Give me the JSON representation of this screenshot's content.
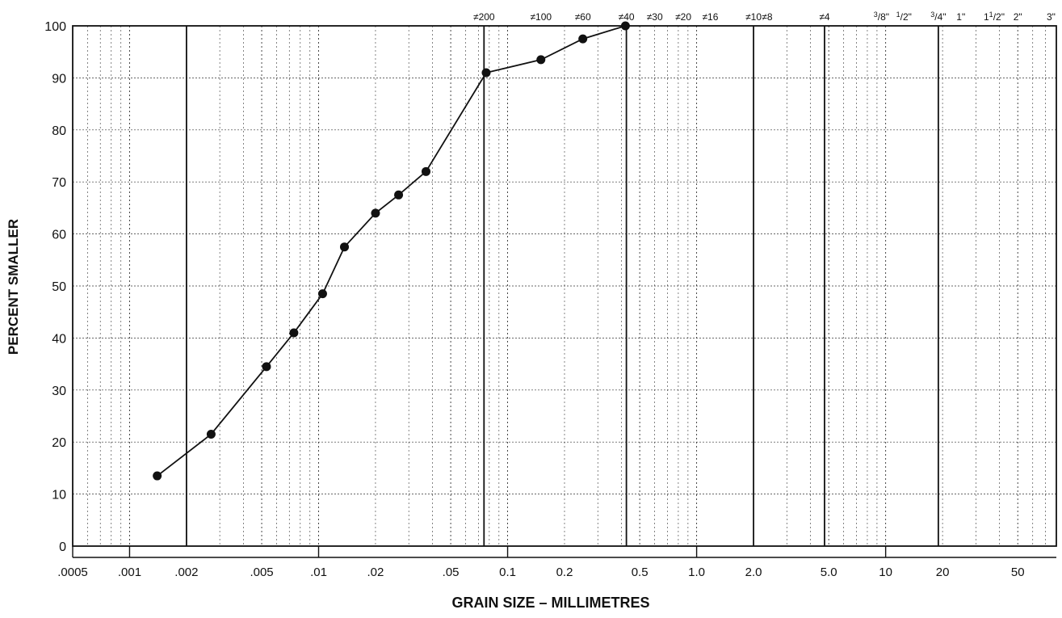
{
  "chart_data": {
    "type": "line",
    "title": "",
    "xlabel": "GRAIN SIZE – MILLIMETRES",
    "ylabel": "PERCENT SMALLER",
    "x_scale": "log",
    "xlim": [
      0.0005,
      80
    ],
    "ylim": [
      0,
      100
    ],
    "grid": true,
    "legend": "none",
    "y_ticks": [
      "0",
      "10",
      "20",
      "30",
      "40",
      "50",
      "60",
      "70",
      "80",
      "90",
      "100"
    ],
    "x_tick_labels": [
      {
        "value": 0.0005,
        "label": ".0005"
      },
      {
        "value": 0.001,
        "label": ".001"
      },
      {
        "value": 0.002,
        "label": ".002"
      },
      {
        "value": 0.005,
        "label": ".005"
      },
      {
        "value": 0.01,
        "label": ".01"
      },
      {
        "value": 0.02,
        "label": ".02"
      },
      {
        "value": 0.05,
        "label": ".05"
      },
      {
        "value": 0.1,
        "label": "0.1"
      },
      {
        "value": 0.2,
        "label": "0.2"
      },
      {
        "value": 0.5,
        "label": "0.5"
      },
      {
        "value": 1.0,
        "label": "1.0"
      },
      {
        "value": 2.0,
        "label": "2.0"
      },
      {
        "value": 5.0,
        "label": "5.0"
      },
      {
        "value": 10,
        "label": "10"
      },
      {
        "value": 20,
        "label": "20"
      },
      {
        "value": 50,
        "label": "50"
      }
    ],
    "sieve_labels": [
      {
        "value": 0.075,
        "label": "≠200"
      },
      {
        "value": 0.15,
        "label": "≠100"
      },
      {
        "value": 0.25,
        "label": "≠60"
      },
      {
        "value": 0.425,
        "label": "≠40"
      },
      {
        "value": 0.6,
        "label": "≠30"
      },
      {
        "value": 0.85,
        "label": "≠20"
      },
      {
        "value": 1.18,
        "label": "≠16"
      },
      {
        "value": 2.0,
        "label": "≠10"
      },
      {
        "value": 2.36,
        "label": "≠8"
      },
      {
        "value": 4.75,
        "label": "≠4"
      },
      {
        "value": 9.5,
        "label": "3/8\""
      },
      {
        "value": 12.5,
        "label": "1/2\""
      },
      {
        "value": 19,
        "label": "3/4\""
      },
      {
        "value": 25,
        "label": "1\""
      },
      {
        "value": 37.5,
        "label": "1 1/2\""
      },
      {
        "value": 50,
        "label": "2\""
      },
      {
        "value": 75,
        "label": "3\""
      }
    ],
    "major_verticals": [
      0.002,
      0.075,
      0.425,
      2.0,
      4.75,
      19
    ],
    "series": [
      {
        "x": [
          0.0014,
          0.0027,
          0.0053,
          0.0074,
          0.0105,
          0.0137,
          0.02,
          0.0265,
          0.037,
          0.077,
          0.15,
          0.25,
          0.42
        ],
        "y": [
          13.5,
          21.5,
          34.5,
          41,
          48.5,
          57.5,
          64,
          67.5,
          72,
          91,
          93.5,
          97.5,
          100
        ]
      }
    ]
  }
}
